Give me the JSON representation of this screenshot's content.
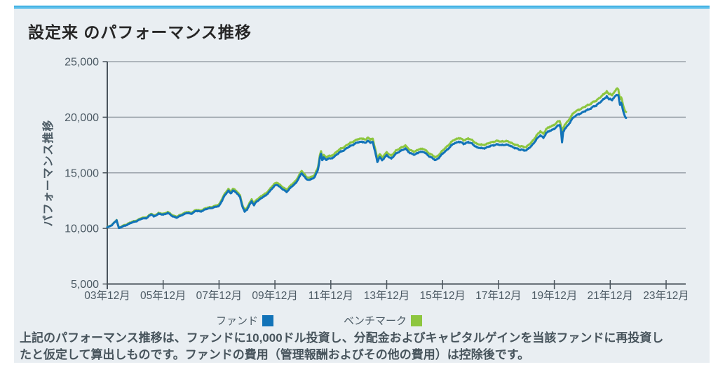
{
  "card": {
    "title": "設定来 のパフォーマンス推移",
    "background": "#e9eef2",
    "accent_border_colors": [
      "#29a8e0",
      "#8ed2f0"
    ]
  },
  "legend": {
    "fund_label": "ファンド",
    "benchmark_label": "ベンチマーク"
  },
  "footnote": {
    "line1": "上記のパフォーマンス推移は、ファンドに10,000ドル投資し、分配金およびキャピタルゲインを当該ファンドに再投資し",
    "line2": "たと仮定して算出しものです。ファンドの費用（管理報酬およびその他の費用）は控除後です。"
  },
  "chart_data": {
    "type": "line",
    "title": "設定来 のパフォーマンス推移",
    "xlabel": "",
    "ylabel": "パフォーマンス推移",
    "ylim": [
      5000,
      25000
    ],
    "y_ticks": [
      25000,
      20000,
      15000,
      10000,
      5000
    ],
    "y_tick_labels": [
      "25,000",
      "20,000",
      "15,000",
      "10,000",
      "5,000"
    ],
    "x_unit": "months since 2003-12",
    "x_axis_months": [
      0,
      248.4
    ],
    "x_ticks": [
      {
        "month": 0,
        "label": "03年12月"
      },
      {
        "month": 24,
        "label": "05年12月"
      },
      {
        "month": 48,
        "label": "07年12月"
      },
      {
        "month": 72,
        "label": "09年12月"
      },
      {
        "month": 96,
        "label": "11年12月"
      },
      {
        "month": 120,
        "label": "13年12月"
      },
      {
        "month": 144,
        "label": "15年12月"
      },
      {
        "month": 168,
        "label": "17年12月"
      },
      {
        "month": 192,
        "label": "19年12月"
      },
      {
        "month": 216,
        "label": "21年12月"
      },
      {
        "month": 240,
        "label": "23年12月"
      }
    ],
    "grid": "horizontal",
    "grid_color": "#9aa2aa",
    "axis_color": "#4a545c",
    "legend_position": "bottom",
    "start_value": 10000,
    "series": [
      {
        "name": "ファンド",
        "color": "#1273b8",
        "points": [
          [
            0,
            10100
          ],
          [
            2,
            10280
          ],
          [
            4,
            10750
          ],
          [
            5,
            10020
          ],
          [
            7,
            10200
          ],
          [
            9,
            10380
          ],
          [
            11,
            10550
          ],
          [
            13,
            10700
          ],
          [
            15,
            10880
          ],
          [
            17,
            10950
          ],
          [
            19,
            11260
          ],
          [
            20,
            11080
          ],
          [
            22,
            11300
          ],
          [
            24,
            11250
          ],
          [
            26,
            11380
          ],
          [
            28,
            11100
          ],
          [
            30,
            10960
          ],
          [
            32,
            11200
          ],
          [
            34,
            11380
          ],
          [
            36,
            11320
          ],
          [
            38,
            11570
          ],
          [
            40,
            11520
          ],
          [
            42,
            11700
          ],
          [
            44,
            11820
          ],
          [
            46,
            11900
          ],
          [
            48,
            12010
          ],
          [
            50,
            12800
          ],
          [
            52,
            13400
          ],
          [
            53,
            13150
          ],
          [
            54,
            13420
          ],
          [
            55,
            13250
          ],
          [
            56,
            13100
          ],
          [
            57,
            12830
          ],
          [
            58,
            12000
          ],
          [
            59,
            11480
          ],
          [
            60,
            11700
          ],
          [
            61,
            12100
          ],
          [
            62,
            12450
          ],
          [
            63,
            12050
          ],
          [
            64,
            12400
          ],
          [
            66,
            12700
          ],
          [
            68,
            12950
          ],
          [
            70,
            13400
          ],
          [
            72,
            13850
          ],
          [
            73,
            13950
          ],
          [
            75,
            13550
          ],
          [
            77,
            13300
          ],
          [
            79,
            13700
          ],
          [
            81,
            14100
          ],
          [
            83.5,
            15000
          ],
          [
            85.5,
            14400
          ],
          [
            87,
            14340
          ],
          [
            89,
            14600
          ],
          [
            90.5,
            15300
          ],
          [
            91.3,
            16300
          ],
          [
            91.8,
            16730
          ],
          [
            92.3,
            16150
          ],
          [
            93,
            16400
          ],
          [
            94,
            16150
          ],
          [
            95,
            16300
          ],
          [
            96,
            16250
          ],
          [
            98,
            16550
          ],
          [
            100,
            16860
          ],
          [
            102,
            17100
          ],
          [
            104,
            17350
          ],
          [
            106,
            17600
          ],
          [
            108,
            17750
          ],
          [
            110,
            17820
          ],
          [
            111,
            17650
          ],
          [
            112,
            17900
          ],
          [
            113,
            17700
          ],
          [
            114,
            17820
          ],
          [
            115,
            16900
          ],
          [
            116,
            15950
          ],
          [
            117,
            16450
          ],
          [
            118,
            16150
          ],
          [
            120,
            16550
          ],
          [
            122,
            16300
          ],
          [
            124,
            16700
          ],
          [
            126,
            17000
          ],
          [
            128,
            17150
          ],
          [
            130,
            16800
          ],
          [
            132,
            16600
          ],
          [
            134,
            16900
          ],
          [
            136,
            16850
          ],
          [
            138,
            16550
          ],
          [
            140,
            16250
          ],
          [
            141,
            16120
          ],
          [
            143,
            16500
          ],
          [
            145,
            16900
          ],
          [
            147,
            17300
          ],
          [
            149,
            17650
          ],
          [
            151,
            17820
          ],
          [
            153,
            17600
          ],
          [
            155,
            17780
          ],
          [
            157,
            17550
          ],
          [
            159,
            17280
          ],
          [
            161,
            17180
          ],
          [
            163,
            17300
          ],
          [
            165,
            17420
          ],
          [
            167,
            17570
          ],
          [
            169,
            17480
          ],
          [
            171,
            17560
          ],
          [
            173,
            17420
          ],
          [
            175,
            17260
          ],
          [
            177,
            17060
          ],
          [
            178,
            17100
          ],
          [
            180,
            17000
          ],
          [
            182,
            17400
          ],
          [
            184,
            17900
          ],
          [
            186,
            18400
          ],
          [
            187.3,
            18150
          ],
          [
            188.5,
            18600
          ],
          [
            190,
            18800
          ],
          [
            192,
            18950
          ],
          [
            193.5,
            19250
          ],
          [
            194.3,
            19340
          ],
          [
            194.8,
            18900
          ],
          [
            195.3,
            17750
          ],
          [
            195.8,
            18650
          ],
          [
            196.5,
            19000
          ],
          [
            198,
            19300
          ],
          [
            199.5,
            19800
          ],
          [
            201,
            20100
          ],
          [
            203,
            20350
          ],
          [
            204.5,
            20500
          ],
          [
            206,
            20650
          ],
          [
            208,
            20850
          ],
          [
            210,
            21050
          ],
          [
            211.5,
            21300
          ],
          [
            213,
            21550
          ],
          [
            214.5,
            21850
          ],
          [
            215.5,
            21550
          ],
          [
            216,
            21700
          ],
          [
            216.8,
            21540
          ],
          [
            217.5,
            21750
          ],
          [
            218.3,
            22000
          ],
          [
            219,
            22040
          ],
          [
            219.5,
            21900
          ],
          [
            220.2,
            21100
          ],
          [
            220.7,
            21350
          ],
          [
            221.3,
            20750
          ],
          [
            221.9,
            20300
          ],
          [
            222.4,
            20050
          ],
          [
            222.8,
            19900
          ]
        ]
      },
      {
        "name": "ベンチマーク",
        "color": "#8dc63f",
        "points": [
          [
            0,
            10120
          ],
          [
            2,
            10300
          ],
          [
            4,
            10770
          ],
          [
            5,
            10040
          ],
          [
            7,
            10260
          ],
          [
            9,
            10440
          ],
          [
            11,
            10610
          ],
          [
            13,
            10760
          ],
          [
            15,
            10950
          ],
          [
            17,
            11020
          ],
          [
            19,
            11330
          ],
          [
            20,
            11150
          ],
          [
            22,
            11370
          ],
          [
            24,
            11320
          ],
          [
            26,
            11470
          ],
          [
            28,
            11190
          ],
          [
            30,
            11050
          ],
          [
            32,
            11290
          ],
          [
            34,
            11470
          ],
          [
            36,
            11410
          ],
          [
            38,
            11660
          ],
          [
            40,
            11610
          ],
          [
            42,
            11790
          ],
          [
            44,
            11910
          ],
          [
            46,
            12000
          ],
          [
            48,
            12150
          ],
          [
            50,
            12950
          ],
          [
            52,
            13560
          ],
          [
            53,
            13310
          ],
          [
            54,
            13580
          ],
          [
            55,
            13410
          ],
          [
            56,
            13260
          ],
          [
            57,
            12980
          ],
          [
            58,
            12140
          ],
          [
            59,
            11620
          ],
          [
            60,
            11860
          ],
          [
            61,
            12270
          ],
          [
            62,
            12620
          ],
          [
            63,
            12220
          ],
          [
            64,
            12570
          ],
          [
            66,
            12880
          ],
          [
            68,
            13130
          ],
          [
            70,
            13590
          ],
          [
            72,
            14040
          ],
          [
            73,
            14150
          ],
          [
            75,
            13740
          ],
          [
            77,
            13490
          ],
          [
            79,
            13890
          ],
          [
            81,
            14300
          ],
          [
            83.5,
            15210
          ],
          [
            85.5,
            14600
          ],
          [
            87,
            14540
          ],
          [
            89,
            14800
          ],
          [
            90.5,
            15520
          ],
          [
            91.3,
            16530
          ],
          [
            91.8,
            16960
          ],
          [
            92.3,
            16370
          ],
          [
            93,
            16630
          ],
          [
            94,
            16380
          ],
          [
            95,
            16530
          ],
          [
            96,
            16480
          ],
          [
            98,
            16810
          ],
          [
            100,
            17130
          ],
          [
            102,
            17370
          ],
          [
            104,
            17630
          ],
          [
            106,
            17880
          ],
          [
            108,
            18030
          ],
          [
            110,
            18110
          ],
          [
            111,
            17930
          ],
          [
            112,
            18190
          ],
          [
            113,
            17980
          ],
          [
            114,
            18110
          ],
          [
            115,
            17170
          ],
          [
            116,
            16210
          ],
          [
            117,
            16710
          ],
          [
            118,
            16410
          ],
          [
            120,
            16810
          ],
          [
            122,
            16560
          ],
          [
            124,
            16970
          ],
          [
            126,
            17270
          ],
          [
            128,
            17420
          ],
          [
            130,
            17070
          ],
          [
            132,
            16870
          ],
          [
            134,
            17170
          ],
          [
            136,
            17120
          ],
          [
            138,
            16810
          ],
          [
            140,
            16510
          ],
          [
            141,
            16380
          ],
          [
            143,
            16760
          ],
          [
            145,
            17200
          ],
          [
            147,
            17610
          ],
          [
            149,
            17970
          ],
          [
            151,
            18140
          ],
          [
            153,
            17920
          ],
          [
            155,
            18100
          ],
          [
            157,
            17870
          ],
          [
            159,
            17590
          ],
          [
            161,
            17490
          ],
          [
            163,
            17610
          ],
          [
            165,
            17730
          ],
          [
            167,
            17890
          ],
          [
            169,
            17790
          ],
          [
            171,
            17880
          ],
          [
            173,
            17730
          ],
          [
            175,
            17570
          ],
          [
            177,
            17370
          ],
          [
            178,
            17400
          ],
          [
            180,
            17300
          ],
          [
            182,
            17720
          ],
          [
            184,
            18230
          ],
          [
            186,
            18760
          ],
          [
            187.3,
            18510
          ],
          [
            188.5,
            18960
          ],
          [
            190,
            19160
          ],
          [
            192,
            19310
          ],
          [
            193.5,
            19620
          ],
          [
            194.3,
            19710
          ],
          [
            194.8,
            19270
          ],
          [
            195.3,
            18300
          ],
          [
            195.8,
            19020
          ],
          [
            196.5,
            19370
          ],
          [
            198,
            19680
          ],
          [
            199.5,
            20180
          ],
          [
            201,
            20490
          ],
          [
            203,
            20750
          ],
          [
            204.5,
            20900
          ],
          [
            206,
            21060
          ],
          [
            208,
            21270
          ],
          [
            210,
            21480
          ],
          [
            211.5,
            21740
          ],
          [
            213,
            21990
          ],
          [
            214.5,
            22300
          ],
          [
            215.5,
            22000
          ],
          [
            216,
            22150
          ],
          [
            216.8,
            21990
          ],
          [
            217.5,
            22200
          ],
          [
            218.3,
            22480
          ],
          [
            219,
            22650
          ],
          [
            219.5,
            22400
          ],
          [
            220.2,
            21600
          ],
          [
            220.7,
            21850
          ],
          [
            221.3,
            21250
          ],
          [
            221.9,
            20800
          ],
          [
            222.4,
            20550
          ],
          [
            222.8,
            20450
          ]
        ]
      }
    ]
  }
}
